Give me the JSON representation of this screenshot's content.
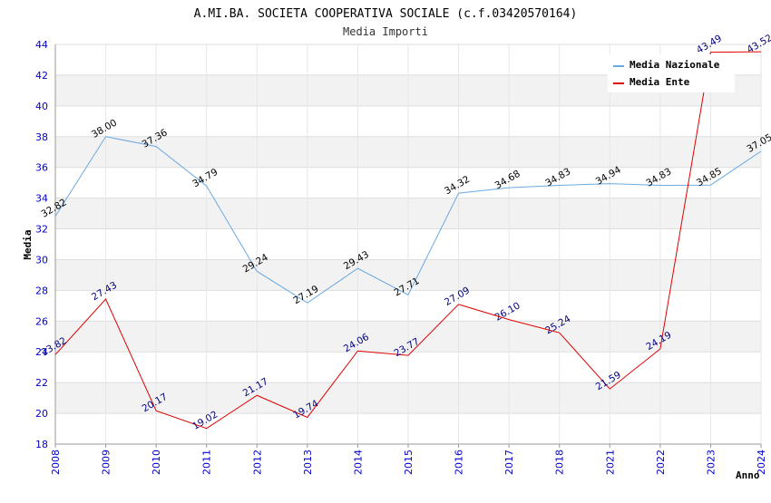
{
  "chart_data": {
    "type": "line",
    "title": "A.MI.BA. SOCIETA COOPERATIVA SOCIALE (c.f.03420570164)",
    "subtitle": "Media Importi",
    "xlabel": "Anno",
    "ylabel": "Media",
    "ylim": [
      18,
      44
    ],
    "yticks": [
      "18",
      "20",
      "22",
      "24",
      "26",
      "28",
      "30",
      "32",
      "34",
      "36",
      "38",
      "40",
      "42",
      "44"
    ],
    "categories": [
      "2008",
      "2009",
      "2010",
      "2011",
      "2012",
      "2013",
      "2014",
      "2015",
      "2016",
      "2017",
      "2018",
      "2021",
      "2022",
      "2023",
      "2024"
    ],
    "series": [
      {
        "name": "Media Nazionale",
        "color": "#6aa8e0",
        "values": [
          32.82,
          38.0,
          37.36,
          34.79,
          29.24,
          27.19,
          29.43,
          27.71,
          34.32,
          34.68,
          34.83,
          34.94,
          34.83,
          34.85,
          37.05
        ],
        "labels": [
          "32.82",
          "38.00",
          "37.36",
          "34.79",
          "29.24",
          "27.19",
          "29.43",
          "27.71",
          "34.32",
          "34.68",
          "34.83",
          "34.94",
          "34.83",
          "34.85",
          "37.05"
        ]
      },
      {
        "name": "Media Ente",
        "color": "#e00000",
        "values": [
          23.82,
          27.43,
          20.17,
          19.02,
          21.17,
          19.74,
          24.06,
          23.77,
          27.09,
          26.1,
          25.24,
          21.59,
          24.19,
          43.49,
          43.52
        ],
        "labels": [
          "23.82",
          "27.43",
          "20.17",
          "19.02",
          "21.17",
          "19.74",
          "24.06",
          "23.77",
          "27.09",
          "26.10",
          "25.24",
          "21.59",
          "24.19",
          "43.49",
          "43.52"
        ]
      }
    ],
    "grid": true,
    "legend_position": "top-right"
  }
}
